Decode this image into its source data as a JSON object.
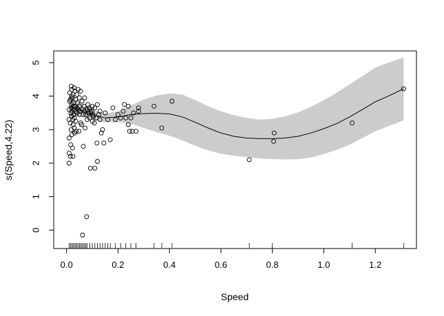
{
  "chart_data": {
    "type": "scatter",
    "title": "",
    "xlabel": "Speed",
    "ylabel": "s(Speed,4.22)",
    "xlim": [
      -0.05,
      1.36
    ],
    "ylim": [
      -0.55,
      5.35
    ],
    "x_ticks": [
      0.0,
      0.2,
      0.4,
      0.6,
      0.8,
      1.0,
      1.2
    ],
    "x_tick_labels": [
      "0.0",
      "0.2",
      "0.4",
      "0.6",
      "0.8",
      "1.0",
      "1.2"
    ],
    "y_ticks": [
      0,
      1,
      2,
      3,
      4,
      5
    ],
    "y_tick_labels": [
      "0",
      "1",
      "2",
      "3",
      "4",
      "5"
    ],
    "grid": false,
    "legend": "none",
    "colors": {
      "band": "#cccccc",
      "line": "#000000",
      "points": "#000000"
    },
    "smooth_curve": {
      "x": [
        0.01,
        0.05,
        0.1,
        0.15,
        0.2,
        0.25,
        0.3,
        0.35,
        0.4,
        0.45,
        0.5,
        0.55,
        0.6,
        0.65,
        0.7,
        0.75,
        0.8,
        0.85,
        0.9,
        0.95,
        1.0,
        1.05,
        1.1,
        1.15,
        1.2,
        1.25,
        1.31
      ],
      "fit": [
        3.7,
        3.6,
        3.45,
        3.35,
        3.38,
        3.45,
        3.48,
        3.49,
        3.47,
        3.38,
        3.22,
        3.05,
        2.9,
        2.8,
        2.75,
        2.73,
        2.73,
        2.75,
        2.8,
        2.9,
        3.03,
        3.18,
        3.38,
        3.6,
        3.83,
        4.0,
        4.22
      ],
      "lower": [
        3.35,
        3.4,
        3.3,
        3.22,
        3.22,
        3.18,
        3.05,
        2.93,
        2.82,
        2.68,
        2.52,
        2.38,
        2.28,
        2.22,
        2.18,
        2.14,
        2.12,
        2.11,
        2.12,
        2.17,
        2.27,
        2.4,
        2.55,
        2.75,
        2.95,
        3.1,
        3.28
      ],
      "upper": [
        4.05,
        3.8,
        3.6,
        3.48,
        3.55,
        3.72,
        3.9,
        4.02,
        4.08,
        4.05,
        3.88,
        3.7,
        3.55,
        3.43,
        3.35,
        3.3,
        3.32,
        3.4,
        3.52,
        3.68,
        3.88,
        4.1,
        4.35,
        4.6,
        4.85,
        5.0,
        5.15
      ]
    },
    "points": {
      "x": [
        0.01,
        0.01,
        0.01,
        0.01,
        0.01,
        0.012,
        0.012,
        0.014,
        0.015,
        0.015,
        0.016,
        0.017,
        0.018,
        0.018,
        0.019,
        0.02,
        0.02,
        0.02,
        0.02,
        0.021,
        0.022,
        0.022,
        0.023,
        0.024,
        0.025,
        0.025,
        0.025,
        0.026,
        0.027,
        0.028,
        0.03,
        0.03,
        0.03,
        0.03,
        0.031,
        0.032,
        0.033,
        0.035,
        0.035,
        0.036,
        0.037,
        0.04,
        0.04,
        0.04,
        0.042,
        0.045,
        0.045,
        0.048,
        0.05,
        0.05,
        0.05,
        0.052,
        0.055,
        0.055,
        0.058,
        0.06,
        0.06,
        0.062,
        0.065,
        0.065,
        0.068,
        0.07,
        0.07,
        0.072,
        0.075,
        0.078,
        0.08,
        0.08,
        0.083,
        0.085,
        0.088,
        0.09,
        0.09,
        0.093,
        0.095,
        0.098,
        0.1,
        0.1,
        0.102,
        0.105,
        0.108,
        0.11,
        0.11,
        0.115,
        0.118,
        0.12,
        0.12,
        0.125,
        0.13,
        0.13,
        0.135,
        0.14,
        0.145,
        0.15,
        0.16,
        0.17,
        0.18,
        0.19,
        0.2,
        0.21,
        0.22,
        0.225,
        0.23,
        0.24,
        0.24,
        0.245,
        0.25,
        0.255,
        0.26,
        0.27,
        0.28,
        0.28,
        0.34,
        0.37,
        0.41,
        0.71,
        0.805,
        0.807,
        1.11,
        1.31
      ],
      "y": [
        2.0,
        2.3,
        2.75,
        3.3,
        3.6,
        3.85,
        4.1,
        3.2,
        3.9,
        2.2,
        2.55,
        3.5,
        4.3,
        3.0,
        3.65,
        3.4,
        3.75,
        4.0,
        4.2,
        2.85,
        3.55,
        3.95,
        2.45,
        3.3,
        3.7,
        4.05,
        2.2,
        3.15,
        3.8,
        3.45,
        3.6,
        4.25,
        3.05,
        3.35,
        2.9,
        3.7,
        4.15,
        3.55,
        3.9,
        3.25,
        2.95,
        3.65,
        4.05,
        3.5,
        3.8,
        3.6,
        4.2,
        2.95,
        3.45,
        3.7,
        3.95,
        3.55,
        3.2,
        4.15,
        3.15,
        3.6,
        3.85,
        -0.15,
        3.45,
        2.5,
        3.7,
        3.55,
        3.95,
        3.05,
        3.45,
        0.4,
        3.6,
        3.3,
        3.75,
        3.5,
        3.65,
        3.35,
        3.6,
        1.85,
        3.5,
        3.55,
        3.25,
        3.7,
        3.45,
        3.4,
        3.2,
        1.85,
        3.65,
        3.35,
        2.6,
        2.05,
        3.75,
        3.45,
        3.3,
        3.55,
        2.9,
        3.0,
        2.6,
        3.5,
        3.3,
        2.7,
        3.65,
        3.3,
        3.45,
        3.35,
        3.55,
        3.75,
        3.35,
        3.7,
        3.15,
        2.95,
        3.35,
        2.95,
        3.5,
        2.95,
        3.55,
        3.65,
        3.7,
        3.05,
        3.85,
        2.1,
        2.65,
        2.9,
        3.2,
        4.22
      ]
    },
    "rug": [
      0.01,
      0.015,
      0.02,
      0.025,
      0.03,
      0.035,
      0.04,
      0.045,
      0.05,
      0.055,
      0.06,
      0.065,
      0.07,
      0.075,
      0.08,
      0.09,
      0.1,
      0.11,
      0.12,
      0.13,
      0.14,
      0.15,
      0.16,
      0.17,
      0.19,
      0.21,
      0.23,
      0.25,
      0.27,
      0.34,
      0.37,
      0.41,
      0.71,
      0.8,
      1.11,
      1.31
    ]
  }
}
